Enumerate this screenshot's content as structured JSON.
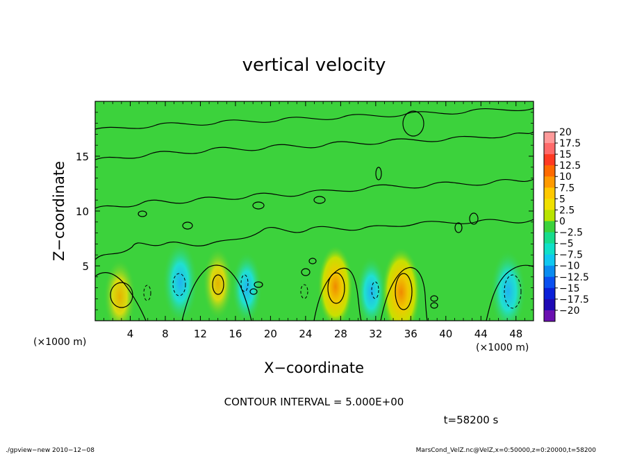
{
  "chart_data": {
    "type": "heatmap",
    "title": "vertical velocity",
    "xlabel": "X−coordinate",
    "ylabel": "Z−coordinate",
    "x_unit_left": "(×1000 m)",
    "x_unit_right": "(×1000 m)",
    "xlim": [
      0,
      50
    ],
    "ylim": [
      0,
      20
    ],
    "x_ticks": [
      "4",
      "8",
      "12",
      "16",
      "20",
      "24",
      "28",
      "32",
      "36",
      "40",
      "44",
      "48"
    ],
    "x_tick_values": [
      4,
      8,
      12,
      16,
      20,
      24,
      28,
      32,
      36,
      40,
      44,
      48
    ],
    "y_ticks": [
      "5",
      "10",
      "15"
    ],
    "y_tick_values": [
      5,
      10,
      15
    ],
    "colorbar": {
      "labels": [
        "20",
        "17.5",
        "15",
        "12.5",
        "10",
        "7.5",
        "5",
        "2.5",
        "0",
        "−2.5",
        "−5",
        "−7.5",
        "−10",
        "−12.5",
        "−15",
        "−17.5",
        "−20"
      ],
      "levels": [
        20,
        17.5,
        15,
        12.5,
        10,
        7.5,
        5,
        2.5,
        0,
        -2.5,
        -5,
        -7.5,
        -10,
        -12.5,
        -15,
        -17.5,
        -20
      ],
      "colors": [
        "#ff9a9a",
        "#ff6a6a",
        "#ff3a22",
        "#ff6a00",
        "#ff9a00",
        "#ffc800",
        "#f0e000",
        "#b8e400",
        "#3cd23c",
        "#18dc8c",
        "#10e0c8",
        "#10c8f0",
        "#0a8cf0",
        "#0a50f0",
        "#0a20d8",
        "#1e0ab4",
        "#6a10b0"
      ]
    },
    "field_features": [
      {
        "x": 2.8,
        "z": 2.2,
        "w": 6,
        "kind": "updraft"
      },
      {
        "x": 9.7,
        "z": 3.5,
        "w": -8,
        "kind": "downdraft"
      },
      {
        "x": 14.0,
        "z": 3.4,
        "w": 5,
        "kind": "updraft"
      },
      {
        "x": 17.3,
        "z": 3.0,
        "w": -5,
        "kind": "downdraft"
      },
      {
        "x": 27.4,
        "z": 3.1,
        "w": 8,
        "kind": "updraft"
      },
      {
        "x": 31.5,
        "z": 2.6,
        "w": -5,
        "kind": "downdraft"
      },
      {
        "x": 34.9,
        "z": 2.6,
        "w": 10,
        "kind": "updraft"
      },
      {
        "x": 47.1,
        "z": 2.7,
        "w": -8,
        "kind": "downdraft"
      }
    ],
    "contour_interval_text": "CONTOUR INTERVAL = 5.000E+00",
    "time_text": "t=58200 s"
  },
  "footer": {
    "left": "./gpview−new   2010−12−08",
    "right": "MarsCond_VelZ.nc@VelZ,x=0:50000,z=0:20000,t=58200"
  }
}
